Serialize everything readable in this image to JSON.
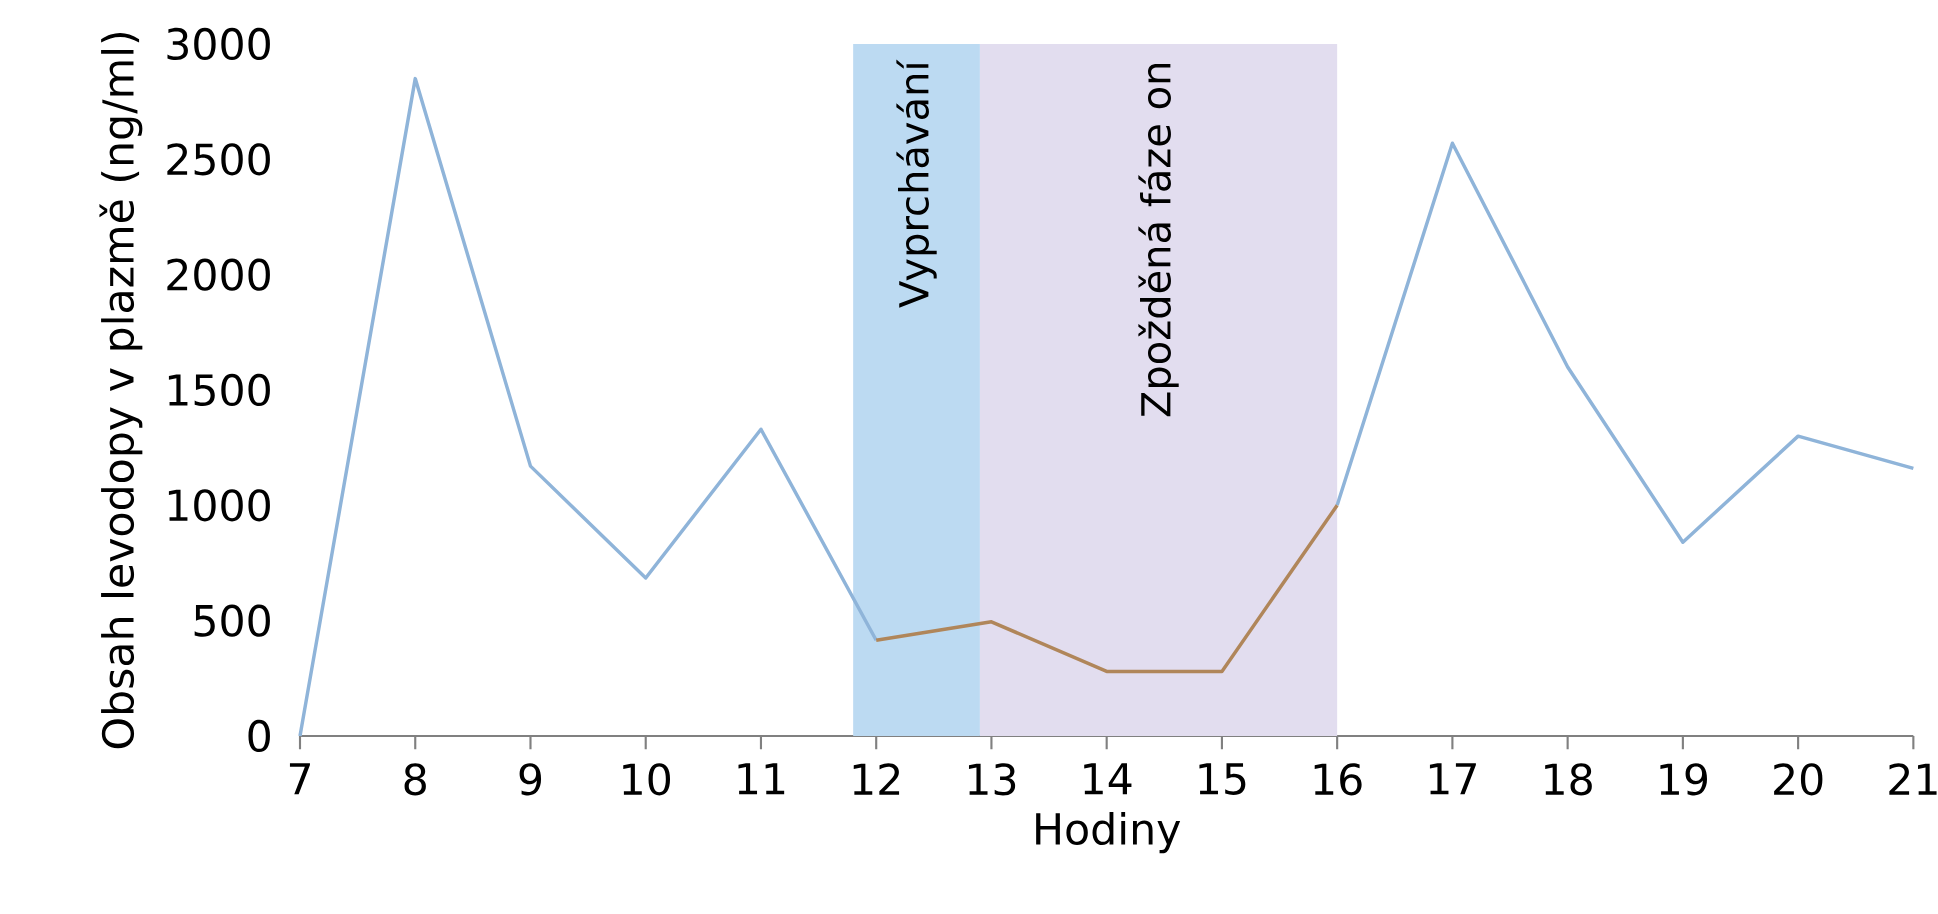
{
  "chart_data": {
    "type": "line",
    "xlabel": "Hodiny",
    "ylabel": "Obsah levodopy v plazmě (ng/ml)",
    "xlim": [
      7,
      21
    ],
    "ylim": [
      0,
      3000
    ],
    "xticks": [
      7,
      8,
      9,
      10,
      11,
      12,
      13,
      14,
      15,
      16,
      17,
      18,
      19,
      20,
      21
    ],
    "yticks": [
      0,
      500,
      1000,
      1500,
      2000,
      2500,
      3000
    ],
    "series": [
      {
        "color": "#8fb4d9",
        "x": [
          7,
          8,
          9,
          10,
          11,
          12,
          13,
          14,
          15,
          16,
          17,
          18,
          19,
          20,
          21
        ],
        "values": [
          0,
          2850,
          1170,
          685,
          1330,
          415,
          null,
          null,
          null,
          1000,
          2570,
          1600,
          840,
          1300,
          1160
        ]
      },
      {
        "color": "#b0865a",
        "x": [
          12,
          13,
          14,
          15,
          16
        ],
        "values": [
          415,
          495,
          280,
          280,
          1000
        ]
      }
    ],
    "bands": [
      {
        "axis": "x",
        "from": 11.8,
        "to": 12.9,
        "label": "Vyprchávání",
        "color": "#bcdaf2"
      },
      {
        "axis": "x",
        "from": 12.9,
        "to": 16,
        "label": "Zpožděná fáze on",
        "color": "#e2ddef"
      }
    ]
  }
}
